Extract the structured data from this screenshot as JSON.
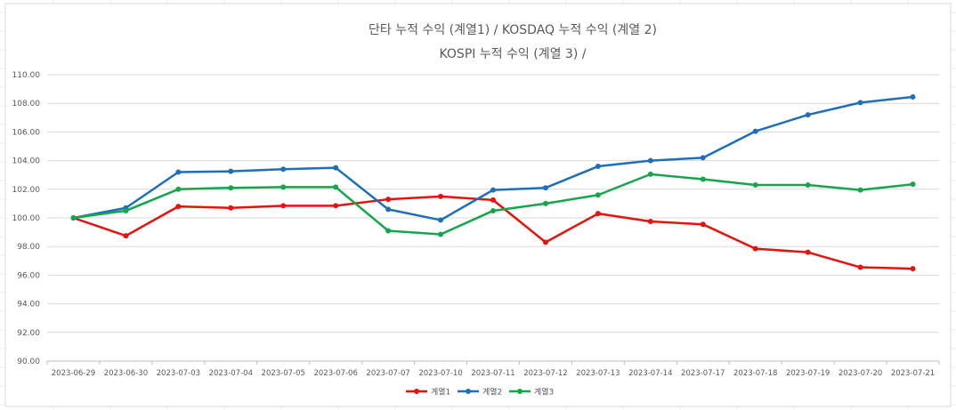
{
  "chart_data": {
    "type": "line",
    "title_lines": [
      "단타 누적 수익 (계열1) /  KOSDAQ 누적 수익 (계열 2)",
      "KOSPI 누적 수익 (계열 3) /"
    ],
    "categories": [
      "2023-06-29",
      "2023-06-30",
      "2023-07-03",
      "2023-07-04",
      "2023-07-05",
      "2023-07-06",
      "2023-07-07",
      "2023-07-10",
      "2023-07-11",
      "2023-07-12",
      "2023-07-13",
      "2023-07-14",
      "2023-07-17",
      "2023-07-18",
      "2023-07-19",
      "2023-07-20",
      "2023-07-21"
    ],
    "ylim": [
      90,
      110
    ],
    "y_ticks": [
      "90.00",
      "92.00",
      "94.00",
      "96.00",
      "98.00",
      "100.00",
      "102.00",
      "104.00",
      "106.00",
      "108.00",
      "110.00"
    ],
    "grid": true,
    "legend_position": "bottom",
    "series": [
      {
        "name": "계열1",
        "color": "#E8120C",
        "values": [
          100.0,
          98.75,
          100.8,
          100.7,
          100.85,
          100.85,
          101.3,
          101.5,
          101.25,
          98.3,
          100.3,
          99.75,
          99.55,
          97.85,
          97.6,
          96.55,
          96.45
        ]
      },
      {
        "name": "계열2",
        "color": "#1E6FBA",
        "values": [
          100.0,
          100.7,
          103.2,
          103.25,
          103.4,
          103.5,
          100.6,
          99.85,
          101.95,
          102.1,
          103.6,
          104.0,
          104.2,
          106.05,
          107.2,
          108.05,
          108.45
        ]
      },
      {
        "name": "계열3",
        "color": "#12A84A",
        "values": [
          100.0,
          100.5,
          102.0,
          102.1,
          102.15,
          102.15,
          99.1,
          98.85,
          100.5,
          101.0,
          101.6,
          103.05,
          102.7,
          102.3,
          102.3,
          101.95,
          102.35
        ]
      }
    ]
  }
}
